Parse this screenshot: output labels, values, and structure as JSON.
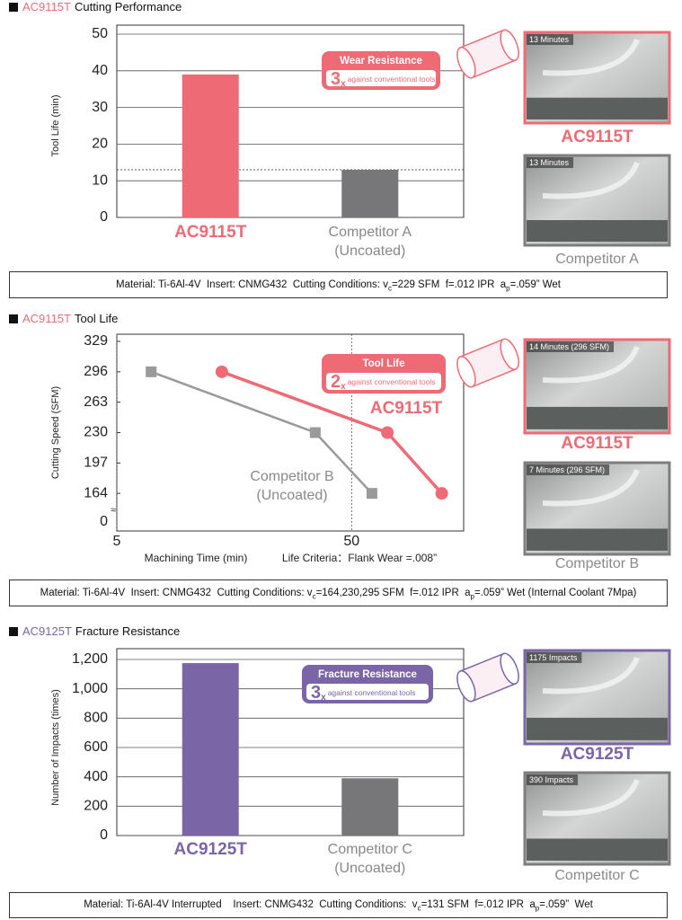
{
  "chart_data": [
    {
      "type": "bar",
      "title_product": "AC9115T",
      "title": "Cutting Performance",
      "accent": "#ee6b76",
      "ylabel": "Tool Life (min)",
      "categories": [
        "AC9115T",
        "Competitor A (Uncoated)"
      ],
      "values": [
        39,
        13
      ],
      "colors": [
        "#ee6b76",
        "#77777a"
      ],
      "ylim": [
        0,
        50
      ],
      "yticks": [
        0,
        10,
        20,
        30,
        40,
        50
      ],
      "grid": true,
      "reference_line": true,
      "callout": {
        "title": "Wear Resistance",
        "factor": "3",
        "factor_unit": "x",
        "text": "against conventional tools"
      },
      "photos": [
        {
          "label": "13 Minutes",
          "caption": "AC9115T",
          "color": "#ee6b76"
        },
        {
          "label": "13 Minutes",
          "caption": "Competitor A",
          "color": "#7d7d7d"
        }
      ],
      "note": [
        "Material: Ti-6Al-4V  Insert: CNMG432  Cutting Conditions: v",
        "c",
        "=229 SFM  f=.012 IPR  a",
        "p",
        "=.059” Wet"
      ]
    },
    {
      "type": "line",
      "title_product": "AC9115T",
      "title": "Tool Life",
      "accent": "#ee6b76",
      "ylabel": "Cutting Speed (SFM)",
      "xlabel": "Machining Time (min)",
      "annotation": "Life Criteria：Flank Wear =.008”",
      "xscale": "log",
      "xlim": [
        5,
        150
      ],
      "xticks": [
        5,
        50
      ],
      "xgrid": true,
      "ylim": [
        131,
        329
      ],
      "yticks": [
        164,
        197,
        230,
        263,
        296,
        329
      ],
      "grid": false,
      "ybreak_label": 0,
      "series": [
        {
          "name": "AC9115T",
          "color": "#ee6b76",
          "marker": "circle",
          "x": [
            14,
            71,
            121
          ],
          "values": [
            296,
            230,
            164
          ]
        },
        {
          "name": "Competitor B (Uncoated)",
          "color": "#9a9a9a",
          "marker": "square",
          "x": [
            7,
            35,
            61
          ],
          "values": [
            296,
            230,
            164
          ]
        }
      ],
      "callout": {
        "title": "Tool Life",
        "factor": "2",
        "factor_unit": "x",
        "text": "against conventional tools"
      },
      "photos": [
        {
          "label": "14 Minutes (296 SFM)",
          "caption": "AC9115T",
          "color": "#ee6b76"
        },
        {
          "label": "7 Minutes (296 SFM)",
          "caption": "Competitor B",
          "color": "#7d7d7d"
        }
      ],
      "note": [
        "Material: Ti-6Al-4V  Insert: CNMG432  Cutting Conditions: v",
        "c",
        "=164,230,295 SFM  f=.012 IPR  a",
        "p",
        "=.059” Wet (Internal Coolant 7Mpa)"
      ]
    },
    {
      "type": "bar",
      "title_product": "AC9125T",
      "title": "Fracture Resistance",
      "accent": "#7a65a6",
      "ylabel": "Number of Impacts (times)",
      "categories": [
        "AC9125T",
        "Competitor C (Uncoated)"
      ],
      "values": [
        1175,
        390
      ],
      "colors": [
        "#7a65a6",
        "#77777a"
      ],
      "ylim": [
        0,
        1200
      ],
      "yticks": [
        0,
        200,
        400,
        600,
        800,
        {
          "value": 1000,
          "label": "1,000"
        },
        {
          "value": 1200,
          "label": "1,200"
        }
      ],
      "grid": true,
      "reference_line": false,
      "callout": {
        "title": "Fracture Resistance",
        "factor": "3",
        "factor_unit": "x",
        "text": "against conventional tools"
      },
      "photos": [
        {
          "label": "1175 Impacts",
          "caption": "AC9125T",
          "color": "#7a65a6"
        },
        {
          "label": "390 Impacts",
          "caption": "Competitor C",
          "color": "#7d7d7d"
        }
      ],
      "note": [
        "Material: Ti-6Al-4V Interrupted    Insert: CNMG432  Cutting Conditions:  v",
        "c",
        "=131 SFM  f=.012 IPR  a",
        "p",
        "=.059”  Wet"
      ]
    }
  ]
}
